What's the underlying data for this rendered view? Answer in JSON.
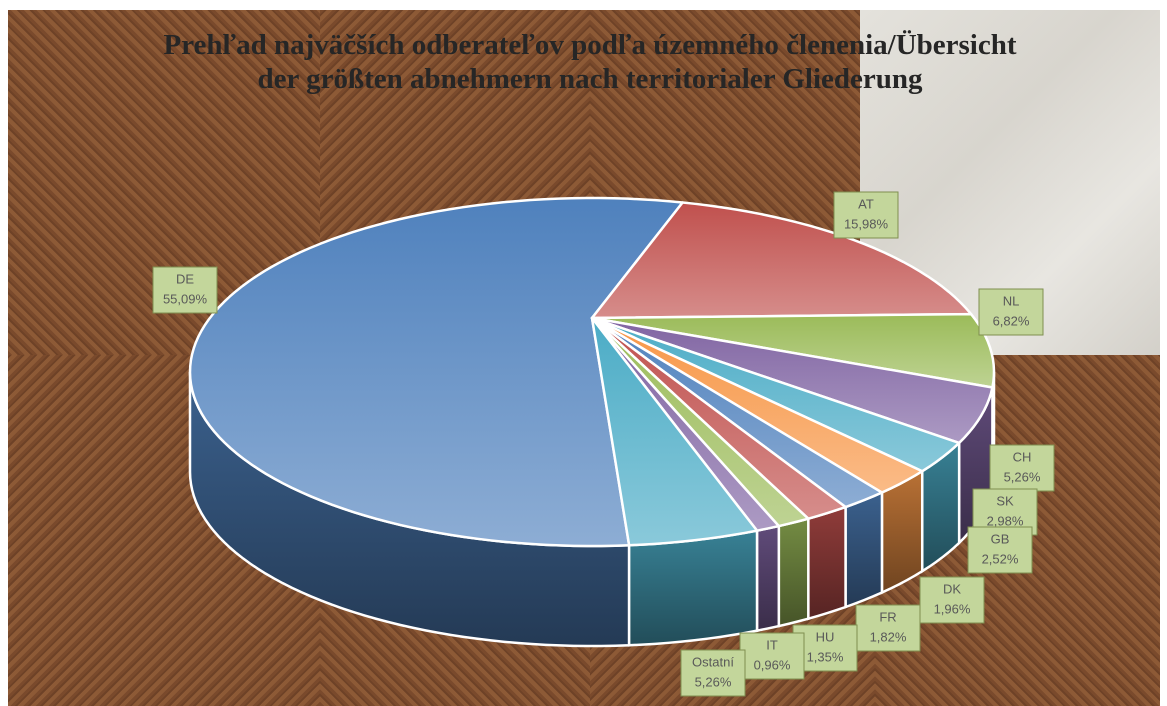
{
  "chart_data": {
    "type": "pie",
    "title": "Prehľad najväčších odberateľov podľa územného členenia/Übersicht der größten abnehmern nach territorialer Gliederung",
    "categories": [
      "DE",
      "AT",
      "NL",
      "CH",
      "SK",
      "GB",
      "DK",
      "FR",
      "HU",
      "IT",
      "Ostatní"
    ],
    "values": [
      55.09,
      15.98,
      6.82,
      5.26,
      2.98,
      2.52,
      1.96,
      1.82,
      1.35,
      0.96,
      5.26
    ],
    "value_labels": [
      "55,09%",
      "15,98%",
      "6,82%",
      "5,26%",
      "2,98%",
      "2,52%",
      "1,96%",
      "1,82%",
      "1,35%",
      "0,96%",
      "5,26%"
    ],
    "colors": [
      "#4f81bd",
      "#c0504d",
      "#9bbb59",
      "#8064a2",
      "#4bacc6",
      "#f79646",
      "#4f81bd",
      "#c0504d",
      "#9bbb59",
      "#8064a2",
      "#4bacc6"
    ]
  }
}
